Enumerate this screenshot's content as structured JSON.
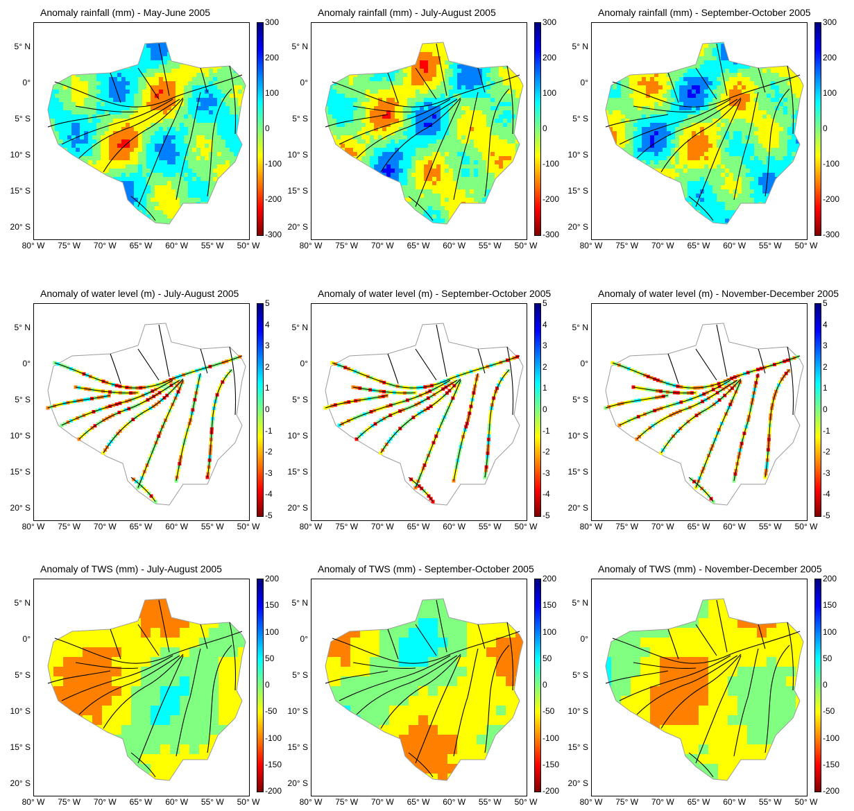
{
  "colors": {
    "river": "#000000",
    "basin_outline": "#9a9a9a",
    "colormap": [
      "#7f0000",
      "#ff0000",
      "#ff8000",
      "#ffff00",
      "#80ff80",
      "#00ffff",
      "#0080ff",
      "#0000ff",
      "#00007f"
    ]
  },
  "axis_labels": {
    "lon": [
      "80° W",
      "75° W",
      "70° W",
      "65° W",
      "60° W",
      "55° W",
      "50° W"
    ],
    "lat": [
      "5° N",
      "0°",
      "5° S",
      "10° S",
      "15° S",
      "20° S"
    ]
  },
  "rows": [
    {
      "name": "rainfall",
      "colorbar": {
        "ticks": [
          "300",
          "200",
          "100",
          "0",
          "-100",
          "-200",
          "-300"
        ],
        "min": -300,
        "max": 300
      }
    },
    {
      "name": "water-level",
      "colorbar": {
        "ticks": [
          "5",
          "4",
          "3",
          "2",
          "1",
          "0",
          "-1",
          "-2",
          "-3",
          "-4",
          "-5"
        ],
        "min": -5,
        "max": 5
      }
    },
    {
      "name": "tws",
      "colorbar": {
        "ticks": [
          "200",
          "150",
          "100",
          "50",
          "0",
          "-50",
          "-100",
          "-150",
          "-200"
        ],
        "min": -200,
        "max": 200
      }
    }
  ],
  "panels": [
    {
      "title": "Anomaly rainfall (mm) - May-June 2005",
      "row": 0,
      "col": 0,
      "style": "rainfall"
    },
    {
      "title": "Anomaly rainfall (mm) - July-August 2005",
      "row": 0,
      "col": 1,
      "style": "rainfall"
    },
    {
      "title": "Anomaly rainfall (mm) - September-October 2005",
      "row": 0,
      "col": 2,
      "style": "rainfall"
    },
    {
      "title": "Anomaly of water level (m) - July-August 2005",
      "row": 1,
      "col": 0,
      "style": "water"
    },
    {
      "title": "Anomaly of water level (m) - September-October 2005",
      "row": 1,
      "col": 1,
      "style": "water"
    },
    {
      "title": "Anomaly of water level (m) - November-December 2005",
      "row": 1,
      "col": 2,
      "style": "water"
    },
    {
      "title": "Anomaly of TWS (mm) - July-August 2005",
      "row": 2,
      "col": 0,
      "style": "tws"
    },
    {
      "title": "Anomaly of TWS (mm) - September-October 2005",
      "row": 2,
      "col": 1,
      "style": "tws"
    },
    {
      "title": "Anomaly of TWS (mm) - November-December 2005",
      "row": 2,
      "col": 2,
      "style": "tws"
    }
  ]
}
